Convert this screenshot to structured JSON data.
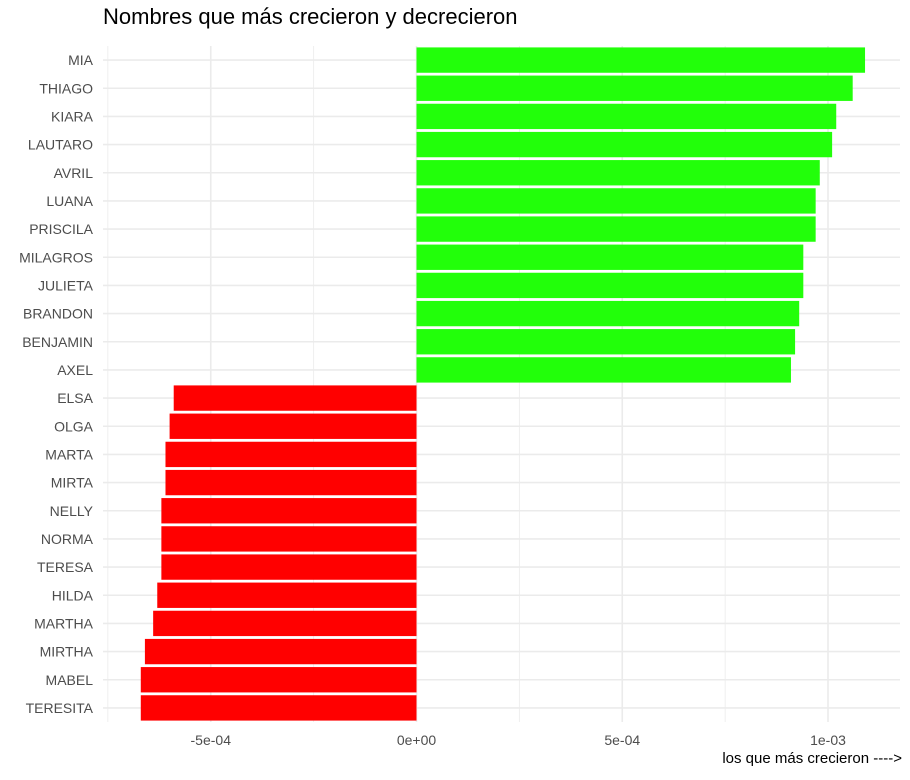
{
  "chart_data": {
    "type": "bar",
    "orientation": "horizontal",
    "title": "Nombres que más crecieron y decrecieron",
    "xlabel": "los que más crecieron ---->",
    "ylabel": "",
    "xlim": [
      -0.00075,
      0.00111
    ],
    "grid": true,
    "legend": "none",
    "x_ticks": [
      {
        "value": -0.0005,
        "label": "-5e-04"
      },
      {
        "value": 0,
        "label": "0e+00"
      },
      {
        "value": 0.0005,
        "label": "5e-04"
      },
      {
        "value": 0.001,
        "label": "1e-03"
      }
    ],
    "minor_gridlines": [
      -0.00075,
      -0.00025,
      0.00025,
      0.00075
    ],
    "colors": {
      "positive": "#22ff0a",
      "negative": "#ff0000",
      "grid": "#ebebeb",
      "tick_text": "#4d4d4d"
    },
    "categories": [
      "MIA",
      "THIAGO",
      "KIARA",
      "LAUTARO",
      "AVRIL",
      "LUANA",
      "PRISCILA",
      "MILAGROS",
      "JULIETA",
      "BRANDON",
      "BENJAMIN",
      "AXEL",
      "ELSA",
      "OLGA",
      "MARTA",
      "MIRTA",
      "NELLY",
      "NORMA",
      "TERESA",
      "HILDA",
      "MARTHA",
      "MIRTHA",
      "MABEL",
      "TERESITA"
    ],
    "values": [
      0.00109,
      0.00106,
      0.00102,
      0.00101,
      0.00098,
      0.00097,
      0.00097,
      0.00094,
      0.00094,
      0.00093,
      0.00092,
      0.00091,
      -0.00059,
      -0.0006,
      -0.00061,
      -0.00061,
      -0.00062,
      -0.00062,
      -0.00062,
      -0.00063,
      -0.00064,
      -0.00066,
      -0.00067,
      -0.00067
    ]
  }
}
